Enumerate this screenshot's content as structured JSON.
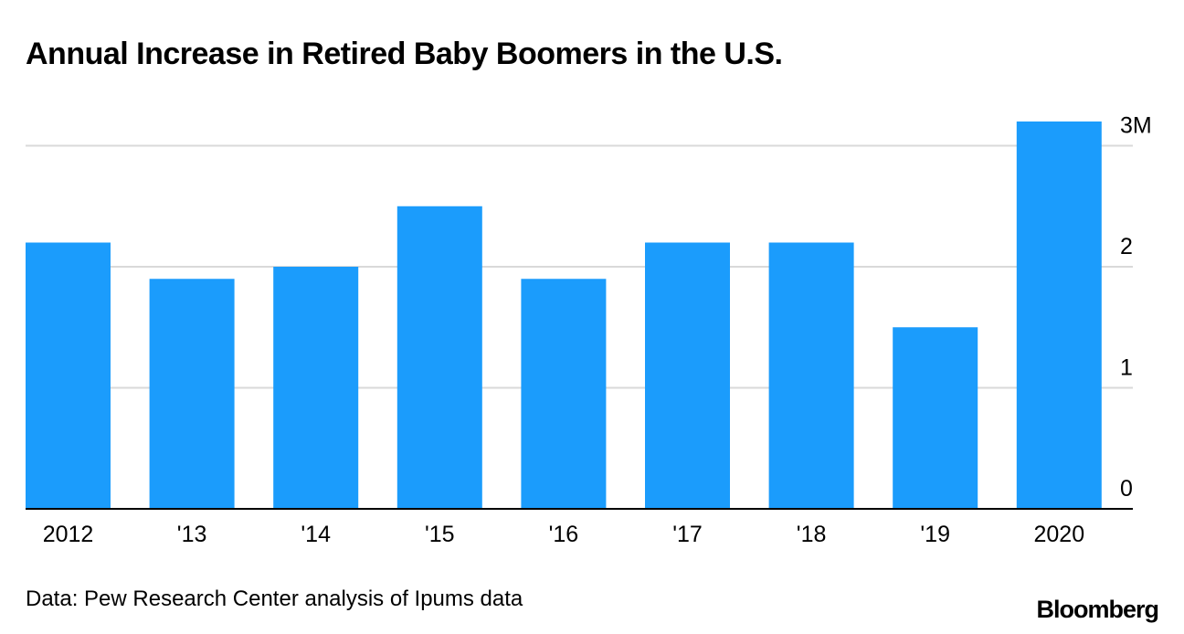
{
  "chart_data": {
    "type": "bar",
    "title": "Annual Increase in Retired Baby Boomers in the U.S.",
    "categories": [
      "2012",
      "'13",
      "'14",
      "'15",
      "'16",
      "'17",
      "'18",
      "'19",
      "2020"
    ],
    "values": [
      2.2,
      1.9,
      2.0,
      2.5,
      1.9,
      2.2,
      2.2,
      1.5,
      3.2
    ],
    "unit": "million",
    "ylim": [
      0,
      3.2
    ],
    "yticks": [
      0,
      1,
      2,
      3
    ],
    "ytick_labels": [
      "0",
      "1",
      "2",
      "3M"
    ],
    "xlabel": "",
    "ylabel": "",
    "grid": true,
    "bar_color": "#1b9cfc",
    "grid_color": "#d9d9d9",
    "axis_color": "#000000"
  },
  "footer": {
    "source": "Data: Pew Research Center analysis of Ipums data",
    "brand": "Bloomberg"
  }
}
